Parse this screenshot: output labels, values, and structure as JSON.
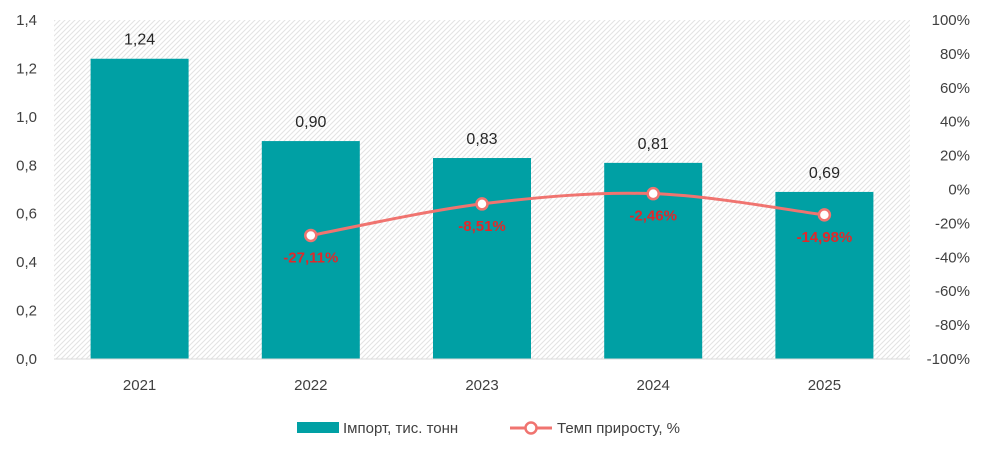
{
  "chart_data": {
    "type": "bar",
    "categories": [
      "2021",
      "2022",
      "2023",
      "2024",
      "2025"
    ],
    "series": [
      {
        "name": "Імпорт, тис. тонн",
        "type": "bar",
        "axis": "left",
        "values": [
          1.24,
          0.9,
          0.83,
          0.81,
          0.69
        ],
        "labels": [
          "1,24",
          "0,90",
          "0,83",
          "0,81",
          "0,69"
        ],
        "color": "#00a0a4"
      },
      {
        "name": "Темп приросту, %",
        "type": "line",
        "axis": "right",
        "values": [
          null,
          -27.11,
          -8.51,
          -2.46,
          -14.98
        ],
        "labels": [
          "",
          "-27,11%",
          "-8,51%",
          "-2,46%",
          "-14,98%"
        ],
        "color": "#f07470",
        "label_color": "#e0282a"
      }
    ],
    "y_left": {
      "ylim": [
        0,
        1.4
      ],
      "ticks": [
        0,
        0.2,
        0.4,
        0.6,
        0.8,
        1.0,
        1.2,
        1.4
      ],
      "tick_labels": [
        "0,0",
        "0,2",
        "0,4",
        "0,6",
        "0,8",
        "1,0",
        "1,2",
        "1,4"
      ]
    },
    "y_right": {
      "ylim": [
        -100,
        100
      ],
      "ticks": [
        -100,
        -80,
        -60,
        -40,
        -20,
        0,
        20,
        40,
        60,
        80,
        100
      ],
      "tick_labels": [
        "-100%",
        "-80%",
        "-60%",
        "-40%",
        "-20%",
        "0%",
        "20%",
        "40%",
        "60%",
        "80%",
        "100%"
      ]
    },
    "title": "",
    "xlabel": "",
    "ylabel": "",
    "grid": false,
    "plot_background": "hatched-light-gray",
    "legend": {
      "position": "bottom",
      "items": [
        "Імпорт, тис. тонн",
        "Темп приросту, %"
      ]
    }
  }
}
